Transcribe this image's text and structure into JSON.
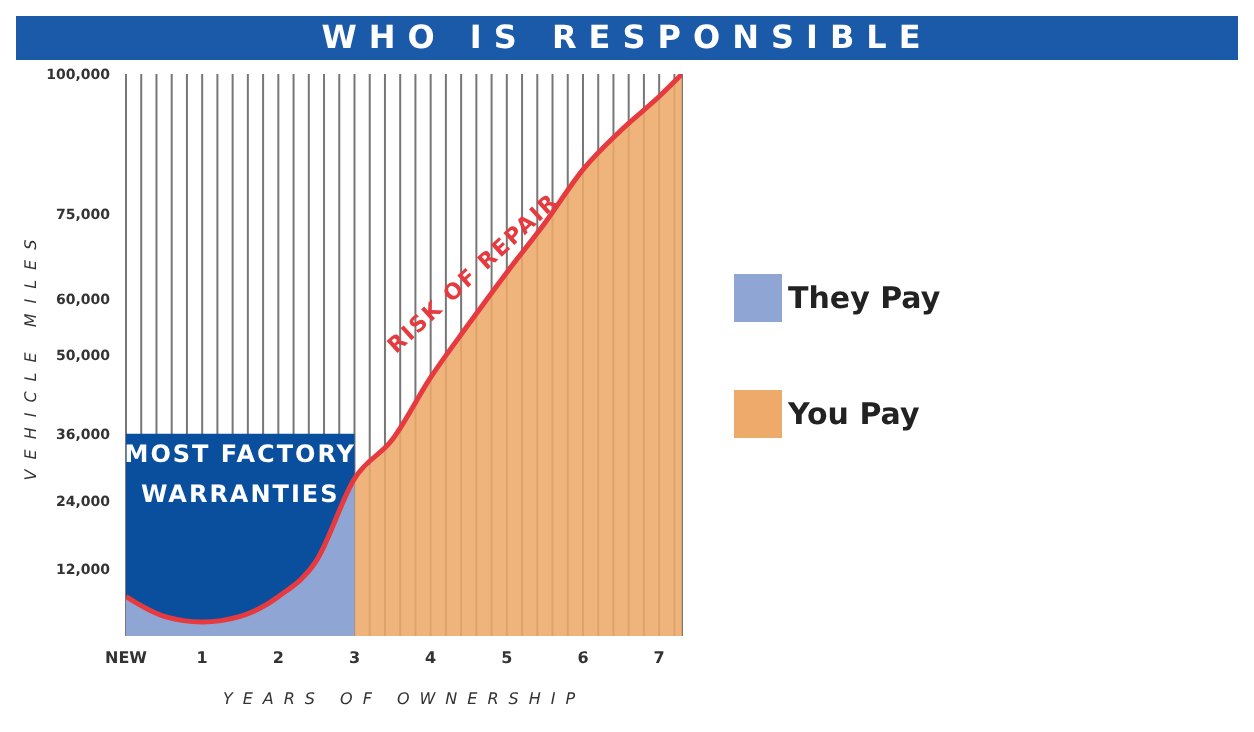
{
  "chart_data": {
    "type": "area",
    "title": "WHO IS RESPONSIBLE",
    "xlabel": "YEARS OF OWNERSHIP",
    "ylabel": "VEHICLE MILES",
    "series": [
      {
        "color": "#0a4f9e",
        "x": [
          0,
          3
        ],
        "values": [
          36000,
          36000
        ]
      },
      {
        "name": "They Pay",
        "color": "#8fa6d4",
        "x": [
          0,
          0.5,
          1,
          1.5,
          2,
          2.5,
          3
        ],
        "values": [
          7000,
          3500,
          2500,
          3500,
          7000,
          13400,
          28000
        ]
      },
      {
        "name": "You Pay",
        "color": "#edaa6a",
        "x": [
          3,
          3.5,
          4,
          4.5,
          5,
          5.5,
          6,
          6.5,
          7,
          7.3
        ],
        "values": [
          28000,
          35000,
          46000,
          55500,
          64700,
          73500,
          83000,
          90000,
          96000,
          100000
        ]
      },
      {
        "type": "line",
        "color": "#e63a3f",
        "x": [
          0,
          0.5,
          1,
          1.5,
          2,
          2.5,
          3,
          3.5,
          4,
          4.5,
          5,
          5.5,
          6,
          6.5,
          7,
          7.3
        ],
        "values": [
          7000,
          3500,
          2500,
          3500,
          7000,
          13400,
          28000,
          35000,
          46000,
          55500,
          64700,
          73500,
          83000,
          90000,
          96000,
          100000
        ]
      }
    ],
    "annotations": [
      "MOST FACTORY WARRANTIES",
      {
        "text": "RISK OF REPAIR",
        "x": 4.8,
        "y": 61000
      }
    ],
    "xlim": [
      0,
      7.3
    ],
    "xticks": [
      {
        "value": 0,
        "label": "NEW"
      },
      {
        "value": 0.2,
        "label": null
      },
      {
        "value": 0.4,
        "label": null
      },
      {
        "value": 0.6,
        "label": null
      },
      {
        "value": 0.8,
        "label": null
      },
      1,
      {
        "value": 1.2,
        "label": null
      },
      {
        "value": 1.4,
        "label": null
      },
      {
        "value": 1.6,
        "label": null
      },
      {
        "value": 1.8,
        "label": null
      },
      2,
      {
        "value": 2.2,
        "label": null
      },
      {
        "value": 2.4,
        "label": null
      },
      {
        "value": 2.6,
        "label": null
      },
      {
        "value": 2.8,
        "label": null
      },
      3,
      {
        "value": 3.2,
        "label": null
      },
      {
        "value": 3.4,
        "label": null
      },
      {
        "value": 3.6,
        "label": null
      },
      {
        "value": 3.8,
        "label": null
      },
      4,
      {
        "value": 4.2,
        "label": null
      },
      {
        "value": 4.4,
        "label": null
      },
      {
        "value": 4.6,
        "label": null
      },
      {
        "value": 4.8,
        "label": null
      },
      5,
      {
        "value": 5.2,
        "label": null
      },
      {
        "value": 5.4,
        "label": null
      },
      {
        "value": 5.6,
        "label": null
      },
      {
        "value": 5.8,
        "label": null
      },
      6,
      {
        "value": 6.2,
        "label": null
      },
      {
        "value": 6.4,
        "label": null
      },
      {
        "value": 6.6,
        "label": null
      },
      {
        "value": 6.8,
        "label": null
      },
      7,
      {
        "value": 7.2,
        "label": null
      }
    ],
    "ylim": [
      0,
      100000
    ],
    "yticks": [
      {
        "value": 12000,
        "label": "12,000"
      },
      {
        "value": 24000,
        "label": "24,000"
      },
      {
        "value": 36000,
        "label": "36,000"
      },
      {
        "value": 50000,
        "label": "50,000"
      },
      {
        "value": 60000,
        "label": "60,000"
      },
      {
        "value": 75000,
        "label": "75,000"
      },
      {
        "value": 100000,
        "label": "100,000"
      }
    ],
    "grid": "x",
    "legend": "right",
    "marker": "none",
    "line_style": "solid"
  }
}
